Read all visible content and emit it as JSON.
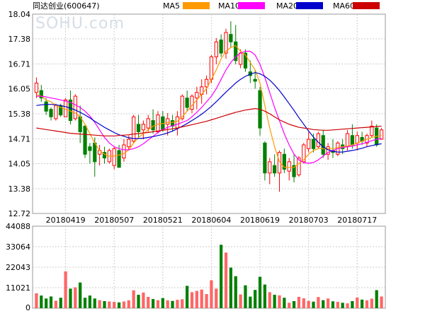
{
  "chart_data": {
    "type": "candlestick",
    "title": "同达创业(600647)",
    "watermark": "SOHU.com",
    "price_ticks": [
      "18.04",
      "17.38",
      "16.71",
      "16.05",
      "15.38",
      "14.71",
      "14.05",
      "13.38",
      "12.72"
    ],
    "price_range": [
      12.72,
      18.04
    ],
    "volume_ticks": [
      "44088",
      "33064",
      "22043",
      "11021",
      "0"
    ],
    "volume_range": [
      0,
      44088
    ],
    "date_labels": [
      "20180419",
      "20180507",
      "20180521",
      "20180604",
      "20180619",
      "20180703",
      "20180717"
    ],
    "date_label_index": [
      6,
      16,
      26,
      36,
      46,
      56,
      66
    ],
    "legend": [
      {
        "label": "MA5",
        "color": "#ff9900"
      },
      {
        "label": "MA10",
        "color": "#ff00ff"
      },
      {
        "label": "MA20",
        "color": "#0000cc"
      },
      {
        "label": "MA60",
        "color": "#cc0000"
      }
    ],
    "colors": {
      "up": "#ff0000",
      "down": "#008000",
      "grid": "#cccccc",
      "frame": "#999999"
    },
    "grid": true,
    "candles": [
      [
        15.95,
        16.35,
        15.8,
        16.2
      ],
      [
        16.0,
        16.15,
        15.7,
        15.8
      ],
      [
        15.7,
        15.8,
        15.35,
        15.45
      ],
      [
        15.5,
        15.55,
        15.2,
        15.3
      ],
      [
        15.25,
        15.65,
        15.2,
        15.6
      ],
      [
        15.6,
        15.65,
        15.3,
        15.35
      ],
      [
        15.3,
        15.8,
        15.3,
        15.75
      ],
      [
        15.75,
        16.0,
        15.1,
        15.2
      ],
      [
        15.25,
        15.9,
        15.2,
        15.85
      ],
      [
        15.3,
        15.6,
        14.6,
        14.9
      ],
      [
        15.05,
        15.1,
        14.2,
        14.3
      ],
      [
        14.5,
        14.6,
        14.05,
        14.4
      ],
      [
        14.6,
        14.75,
        13.7,
        14.1
      ],
      [
        14.3,
        14.55,
        14.0,
        14.4
      ],
      [
        14.35,
        14.5,
        14.05,
        14.2
      ],
      [
        14.1,
        14.45,
        14.05,
        14.4
      ],
      [
        14.0,
        14.5,
        13.9,
        14.45
      ],
      [
        14.4,
        14.55,
        13.95,
        13.95
      ],
      [
        14.2,
        14.7,
        14.1,
        14.55
      ],
      [
        14.5,
        14.8,
        14.4,
        14.7
      ],
      [
        14.65,
        15.35,
        14.6,
        15.3
      ],
      [
        15.1,
        15.35,
        14.75,
        14.9
      ],
      [
        14.95,
        15.2,
        14.7,
        15.1
      ],
      [
        15.0,
        15.35,
        14.9,
        15.25
      ],
      [
        15.2,
        15.5,
        14.85,
        14.95
      ],
      [
        14.9,
        15.45,
        14.85,
        15.35
      ],
      [
        15.3,
        15.45,
        14.9,
        14.95
      ],
      [
        15.1,
        15.4,
        14.8,
        15.25
      ],
      [
        15.2,
        15.35,
        14.9,
        15.05
      ],
      [
        15.0,
        15.45,
        14.8,
        15.3
      ],
      [
        15.25,
        15.9,
        15.2,
        15.85
      ],
      [
        15.8,
        16.0,
        15.45,
        15.55
      ],
      [
        15.5,
        15.9,
        15.4,
        15.85
      ],
      [
        15.8,
        16.1,
        15.5,
        15.95
      ],
      [
        15.9,
        16.3,
        15.65,
        16.1
      ],
      [
        16.1,
        16.4,
        15.9,
        16.3
      ],
      [
        16.3,
        16.95,
        16.2,
        16.9
      ],
      [
        16.9,
        17.4,
        16.7,
        17.3
      ],
      [
        17.35,
        17.5,
        16.9,
        17.0
      ],
      [
        17.0,
        17.65,
        16.85,
        17.55
      ],
      [
        17.5,
        17.85,
        17.15,
        17.3
      ],
      [
        17.3,
        17.75,
        16.7,
        16.8
      ],
      [
        16.7,
        17.1,
        16.6,
        17.0
      ],
      [
        17.0,
        17.1,
        16.5,
        16.6
      ],
      [
        16.5,
        16.8,
        16.2,
        16.4
      ],
      [
        16.3,
        16.55,
        16.05,
        16.25
      ],
      [
        16.0,
        16.1,
        14.8,
        15.0
      ],
      [
        14.6,
        14.65,
        13.6,
        13.8
      ],
      [
        13.8,
        14.2,
        13.5,
        14.1
      ],
      [
        14.0,
        14.3,
        13.7,
        13.8
      ],
      [
        13.8,
        14.4,
        13.3,
        14.35
      ],
      [
        14.3,
        14.45,
        13.8,
        13.9
      ],
      [
        13.85,
        14.2,
        13.6,
        14.1
      ],
      [
        14.0,
        14.3,
        13.55,
        13.7
      ],
      [
        13.75,
        14.25,
        13.7,
        14.2
      ],
      [
        14.1,
        14.6,
        14.05,
        14.55
      ],
      [
        14.45,
        14.9,
        14.35,
        14.7
      ],
      [
        14.7,
        14.85,
        14.35,
        14.45
      ],
      [
        14.5,
        14.9,
        14.45,
        14.85
      ],
      [
        14.8,
        14.95,
        14.2,
        14.3
      ],
      [
        14.3,
        14.6,
        14.15,
        14.5
      ],
      [
        14.4,
        14.7,
        14.2,
        14.35
      ],
      [
        14.3,
        14.65,
        14.25,
        14.6
      ],
      [
        14.55,
        14.7,
        14.3,
        14.45
      ],
      [
        14.5,
        14.95,
        14.4,
        14.85
      ],
      [
        14.8,
        15.1,
        14.45,
        14.55
      ],
      [
        14.6,
        14.9,
        14.4,
        14.8
      ],
      [
        14.75,
        14.9,
        14.55,
        14.65
      ],
      [
        14.6,
        14.85,
        14.5,
        14.8
      ],
      [
        14.8,
        15.2,
        14.75,
        15.05
      ],
      [
        15.0,
        15.1,
        14.5,
        14.55
      ],
      [
        14.7,
        15.0,
        14.7,
        14.95
      ]
    ],
    "volumes": [
      8000,
      6800,
      5200,
      6300,
      4000,
      5600,
      19800,
      10500,
      11200,
      13800,
      5600,
      6800,
      5200,
      4300,
      3800,
      3600,
      3400,
      3100,
      3600,
      4200,
      9600,
      7200,
      8400,
      6100,
      4900,
      4300,
      5400,
      4200,
      3900,
      4500,
      4800,
      12000,
      8600,
      9300,
      10000,
      7600,
      15000,
      10500,
      34100,
      29900,
      21800,
      17200,
      7400,
      12300,
      6200,
      9800,
      16900,
      12700,
      8600,
      7200,
      6900,
      5600,
      2900,
      3800,
      6100,
      5300,
      3900,
      3500,
      6000,
      4300,
      5200,
      3700,
      3400,
      2900,
      2600,
      3800,
      5700,
      4600,
      4200,
      5100,
      9700,
      6300
    ],
    "ma5": [
      15.9,
      15.85,
      15.75,
      15.7,
      15.6,
      15.55,
      15.5,
      15.45,
      15.4,
      15.3,
      15.1,
      14.85,
      14.6,
      14.4,
      14.3,
      14.25,
      14.25,
      14.28,
      14.32,
      14.42,
      14.6,
      14.75,
      14.85,
      14.95,
      15.05,
      15.1,
      15.12,
      15.15,
      15.15,
      15.18,
      15.3,
      15.45,
      15.6,
      15.75,
      15.9,
      16.05,
      16.3,
      16.55,
      16.85,
      17.05,
      17.15,
      17.2,
      17.05,
      16.95,
      16.75,
      16.55,
      16.2,
      15.6,
      15.0,
      14.5,
      14.1,
      13.95,
      13.95,
      13.95,
      14.05,
      14.15,
      14.3,
      14.4,
      14.45,
      14.45,
      14.45,
      14.45,
      14.48,
      14.5,
      14.52,
      14.55,
      14.6,
      14.65,
      14.7,
      14.75,
      14.78,
      14.8
    ],
    "ma10": [
      15.85,
      15.85,
      15.83,
      15.8,
      15.78,
      15.75,
      15.72,
      15.68,
      15.62,
      15.55,
      15.45,
      15.32,
      15.15,
      14.95,
      14.75,
      14.6,
      14.5,
      14.45,
      14.42,
      14.42,
      14.45,
      14.5,
      14.58,
      14.68,
      14.78,
      14.88,
      14.96,
      15.02,
      15.06,
      15.1,
      15.15,
      15.2,
      15.3,
      15.42,
      15.55,
      15.7,
      15.85,
      16.05,
      16.3,
      16.55,
      16.75,
      16.9,
      17.0,
      17.05,
      17.05,
      16.95,
      16.7,
      16.35,
      15.95,
      15.55,
      15.2,
      14.85,
      14.55,
      14.3,
      14.15,
      14.08,
      14.06,
      14.08,
      14.15,
      14.25,
      14.35,
      14.4,
      14.45,
      14.48,
      14.5,
      14.52,
      14.55,
      14.58,
      14.62,
      14.66,
      14.7,
      14.72
    ],
    "ma20": [
      15.6,
      15.62,
      15.63,
      15.63,
      15.62,
      15.6,
      15.57,
      15.53,
      15.48,
      15.42,
      15.35,
      15.27,
      15.18,
      15.1,
      15.02,
      14.95,
      14.88,
      14.82,
      14.78,
      14.74,
      14.72,
      14.72,
      14.73,
      14.75,
      14.77,
      14.8,
      14.83,
      14.87,
      14.92,
      14.98,
      15.05,
      15.12,
      15.2,
      15.28,
      15.37,
      15.47,
      15.58,
      15.7,
      15.83,
      15.96,
      16.08,
      16.2,
      16.3,
      16.38,
      16.44,
      16.48,
      16.45,
      16.38,
      16.28,
      16.15,
      16.0,
      15.83,
      15.65,
      15.47,
      15.28,
      15.1,
      14.92,
      14.76,
      14.62,
      14.5,
      14.42,
      14.38,
      14.36,
      14.36,
      14.38,
      14.4,
      14.43,
      14.46,
      14.5,
      14.53,
      14.56,
      14.58
    ],
    "ma60": [
      15.0,
      14.98,
      14.96,
      14.94,
      14.92,
      14.9,
      14.88,
      14.86,
      14.85,
      14.84,
      14.83,
      14.82,
      14.81,
      14.8,
      14.79,
      14.79,
      14.79,
      14.8,
      14.81,
      14.82,
      14.84,
      14.85,
      14.87,
      14.88,
      14.9,
      14.92,
      14.94,
      14.96,
      14.98,
      15.0,
      15.03,
      15.06,
      15.09,
      15.12,
      15.15,
      15.18,
      15.22,
      15.26,
      15.3,
      15.34,
      15.38,
      15.42,
      15.45,
      15.48,
      15.5,
      15.52,
      15.5,
      15.45,
      15.38,
      15.3,
      15.22,
      15.16,
      15.1,
      15.06,
      15.02,
      15.0,
      14.98,
      14.96,
      14.95,
      14.94,
      14.94,
      14.95,
      14.96,
      14.97,
      14.98,
      14.99,
      15.0,
      15.01,
      15.02,
      15.03,
      15.04,
      15.05
    ]
  }
}
